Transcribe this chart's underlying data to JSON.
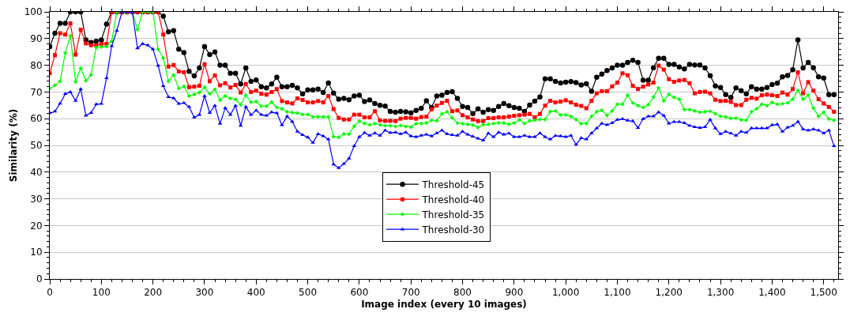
{
  "chart_data": {
    "type": "line",
    "xlabel": "Image index (every 10 images)",
    "ylabel": "Similarity (%)",
    "x": [
      0,
      10,
      20,
      30,
      40,
      50,
      60,
      70,
      80,
      90,
      100,
      110,
      120,
      130,
      140,
      150,
      160,
      170,
      180,
      190,
      200,
      210,
      220,
      230,
      240,
      250,
      260,
      270,
      280,
      290,
      300,
      310,
      320,
      330,
      340,
      350,
      360,
      370,
      380,
      390,
      400,
      410,
      420,
      430,
      440,
      450,
      460,
      470,
      480,
      490,
      500,
      510,
      520,
      530,
      540,
      550,
      560,
      570,
      580,
      590,
      600,
      610,
      620,
      630,
      640,
      650,
      660,
      670,
      680,
      690,
      700,
      710,
      720,
      730,
      740,
      750,
      760,
      770,
      780,
      790,
      800,
      810,
      820,
      830,
      840,
      850,
      860,
      870,
      880,
      890,
      900,
      910,
      920,
      930,
      940,
      950,
      960,
      970,
      980,
      990,
      1000,
      1010,
      1020,
      1030,
      1040,
      1050,
      1060,
      1070,
      1080,
      1090,
      1100,
      1110,
      1120,
      1130,
      1140,
      1150,
      1160,
      1170,
      1180,
      1190,
      1200,
      1210,
      1220,
      1230,
      1240,
      1250,
      1260,
      1270,
      1280,
      1290,
      1300,
      1310,
      1320,
      1330,
      1340,
      1350,
      1360,
      1370,
      1380,
      1390,
      1400,
      1410,
      1420,
      1430,
      1440,
      1450,
      1460,
      1470,
      1480,
      1490,
      1500,
      1510,
      1520
    ],
    "series": [
      {
        "name": "Threshold-45",
        "color": "#000000",
        "marker": "circle",
        "values": [
          87,
          92,
          95.7,
          95.7,
          100,
          100,
          100,
          89.5,
          88.5,
          89,
          89.5,
          95.4,
          100,
          100,
          100,
          100,
          100,
          100,
          100,
          100,
          100,
          100,
          98.4,
          92.5,
          93,
          86,
          84.8,
          77.7,
          76,
          79,
          87,
          84,
          85,
          80,
          80,
          77,
          77,
          73,
          79,
          74,
          74.5,
          72,
          71.5,
          73,
          75.5,
          72,
          72,
          72.5,
          71.5,
          69.3,
          70.8,
          70.8,
          71.1,
          69.8,
          73.4,
          69.6,
          67.3,
          67.6,
          67.1,
          68.5,
          68.8,
          66.4,
          67,
          65.7,
          65,
          64.7,
          62.7,
          62.4,
          62.7,
          62.6,
          62.2,
          63.1,
          63.9,
          66.7,
          64.2,
          68.5,
          68.8,
          69.8,
          70.1,
          67.6,
          64.6,
          64.2,
          61.9,
          63.7,
          62.4,
          63.4,
          63.1,
          64.6,
          65.7,
          64.9,
          64.2,
          63.9,
          62.7,
          65.1,
          66.6,
          68.1,
          74.9,
          74.9,
          74,
          73.4,
          73.7,
          73.9,
          73.5,
          72.6,
          73.1,
          70.3,
          75.5,
          76.7,
          78,
          79,
          80,
          80,
          81.1,
          81.9,
          81.1,
          74.4,
          74.4,
          79.1,
          82.6,
          82.6,
          80.3,
          80.3,
          79.4,
          78.6,
          80.3,
          80.1,
          80.1,
          79,
          76.1,
          72.3,
          71.7,
          69,
          68,
          71.5,
          70.5,
          69.3,
          72,
          71.1,
          71.1,
          71.7,
          72.8,
          73.3,
          75.7,
          76.2,
          78.3,
          89.5,
          79,
          81.1,
          79.1,
          75.7,
          75.2,
          69,
          69
        ]
      },
      {
        "name": "Threshold-40",
        "color": "#ff0000",
        "marker": "square",
        "values": [
          77,
          83.8,
          92,
          91.5,
          95.7,
          84,
          93.3,
          88.2,
          87.5,
          87.5,
          88,
          88,
          100,
          100,
          100,
          100,
          100,
          100,
          100,
          100,
          100,
          100,
          91.5,
          79.5,
          80.1,
          77.7,
          77.4,
          71.8,
          72,
          72.3,
          80.4,
          74,
          76.2,
          72.5,
          73.3,
          71.7,
          72.6,
          69.8,
          73,
          70,
          70.5,
          69.3,
          69,
          70,
          71.1,
          66.6,
          66.1,
          65.7,
          67.6,
          67,
          66.1,
          66.1,
          66.6,
          66.1,
          68.5,
          63.6,
          60.3,
          59.7,
          59.7,
          61.5,
          61.5,
          60.5,
          60.5,
          62.8,
          59.4,
          59.2,
          59.2,
          59.1,
          60,
          60.3,
          60.3,
          60,
          60.6,
          60.8,
          63.5,
          64.9,
          65.9,
          66.7,
          62.8,
          63.1,
          61.3,
          60.5,
          59.7,
          59.1,
          59.1,
          60.2,
          60.2,
          60.5,
          60.5,
          60.8,
          61.1,
          61.3,
          61.5,
          61.8,
          60.5,
          61.8,
          64.9,
          66.7,
          66.1,
          66.4,
          66.9,
          66.1,
          65.2,
          64.8,
          63.9,
          66.7,
          69.5,
          70.3,
          70.3,
          72.1,
          73.5,
          77,
          76.3,
          72.3,
          71.1,
          72,
          72.8,
          73.5,
          79.9,
          78.4,
          74.8,
          73.8,
          74.3,
          74.5,
          73.3,
          69.5,
          70,
          70.1,
          69.5,
          67.1,
          66.6,
          66.7,
          66.3,
          65.1,
          65.1,
          67.1,
          67.8,
          67.5,
          68.8,
          69,
          68.8,
          68.5,
          69.8,
          69,
          71.1,
          77.4,
          69.5,
          73.7,
          70.5,
          67.3,
          65.7,
          64.4,
          62.6
        ]
      },
      {
        "name": "Threshold-35",
        "color": "#00ff00",
        "marker": "diamond",
        "values": [
          71.3,
          72.5,
          74,
          84.6,
          91,
          73.8,
          78.9,
          74.2,
          76.4,
          86.6,
          86.9,
          87,
          89,
          100,
          100,
          100,
          100,
          93.4,
          100,
          100,
          100,
          86,
          82.7,
          74,
          76.4,
          71.3,
          72.1,
          68.5,
          69.1,
          69.8,
          71.8,
          69.3,
          71,
          67,
          68.5,
          67.6,
          67.3,
          65.2,
          68.8,
          66.2,
          66.4,
          64.7,
          64.7,
          66.2,
          64.2,
          63.7,
          62.6,
          62.3,
          62.1,
          61.6,
          61.6,
          60.7,
          60.7,
          60.7,
          60.7,
          53.3,
          53,
          54.3,
          54.2,
          57.2,
          59.1,
          58.2,
          57.7,
          58.2,
          57.7,
          57.4,
          57.4,
          57.1,
          57.4,
          57.1,
          56.9,
          58.1,
          58.2,
          58.4,
          59.4,
          59.2,
          61.8,
          62.6,
          60.3,
          58.4,
          58.1,
          57.9,
          57.6,
          56.7,
          57.7,
          57.9,
          58.2,
          58.4,
          58.4,
          57.9,
          58.4,
          59.6,
          58.2,
          59.2,
          59.4,
          59.7,
          59.7,
          62.7,
          62.9,
          61.4,
          61.4,
          60.9,
          59.7,
          58.1,
          58.2,
          60.9,
          62.6,
          63.2,
          61.2,
          62.9,
          65.4,
          65.4,
          68.8,
          65.9,
          64.9,
          64.2,
          65.2,
          68.1,
          71.5,
          66.7,
          69.1,
          68,
          67.3,
          63.4,
          63.4,
          62.9,
          62.4,
          62.6,
          62.8,
          61.9,
          60.9,
          60.7,
          60.1,
          60.2,
          59.6,
          59.4,
          62.6,
          63.7,
          65.4,
          64.9,
          66.1,
          65.4,
          65.6,
          65.9,
          67.3,
          70.6,
          67.3,
          68.8,
          63.9,
          60.9,
          62.4,
          59.9,
          59.4
        ]
      },
      {
        "name": "Threshold-30",
        "color": "#0000ff",
        "marker": "triangle",
        "values": [
          62.1,
          62.7,
          65.7,
          69.3,
          70,
          66.7,
          71.1,
          61.2,
          62.2,
          65.4,
          65.6,
          75.2,
          87.2,
          93,
          100,
          100,
          100,
          86.4,
          88,
          87.5,
          86,
          79.9,
          72.3,
          68.1,
          67.7,
          65.6,
          65.9,
          64.4,
          60.5,
          61.5,
          68.5,
          62.2,
          64.9,
          58.1,
          64,
          61.5,
          64.9,
          57.4,
          64.4,
          61.5,
          63.1,
          61.5,
          61.2,
          62.4,
          62.1,
          57.6,
          60.9,
          58.9,
          55.2,
          53.9,
          53,
          51,
          54.3,
          53.5,
          52.3,
          42.9,
          41.6,
          43.1,
          45.1,
          49.8,
          53.2,
          54.7,
          53.7,
          54.6,
          53.7,
          55.6,
          54.7,
          54.9,
          54.3,
          54.9,
          53.5,
          53.2,
          53.7,
          54.1,
          53.5,
          54.6,
          55.6,
          54.3,
          53.9,
          53.7,
          55.2,
          54.1,
          53.3,
          52.6,
          51.9,
          54.5,
          53.2,
          54.9,
          54.1,
          54.5,
          53.2,
          53.2,
          53.7,
          53.2,
          53.2,
          54.6,
          53.2,
          52.3,
          53.6,
          53.5,
          53.2,
          53.7,
          50.3,
          52.7,
          52.3,
          54.6,
          56.4,
          58.2,
          57.7,
          58.4,
          59.6,
          59.9,
          59.3,
          59.1,
          56.6,
          59.9,
          60.9,
          60.9,
          62.4,
          61.2,
          58.2,
          58.8,
          58.8,
          58.4,
          57.4,
          56.9,
          56.6,
          56.9,
          59.6,
          56.4,
          54.3,
          55.2,
          54.5,
          53.7,
          55.2,
          54.8,
          56.4,
          56.4,
          56.4,
          56.4,
          57.6,
          57.9,
          55.2,
          56.7,
          57.4,
          58.9,
          56.1,
          55.6,
          56.1,
          55.6,
          54.6,
          55.6,
          49.8
        ]
      }
    ],
    "xlim": [
      0,
      1528
    ],
    "ylim": [
      0,
      100
    ],
    "xticks": [
      0,
      100,
      200,
      300,
      400,
      500,
      600,
      700,
      800,
      900,
      {
        "value": 1000,
        "label": "1,000"
      },
      {
        "value": 1100,
        "label": "1,100"
      },
      {
        "value": 1200,
        "label": "1,200"
      },
      {
        "value": 1300,
        "label": "1,300"
      },
      {
        "value": 1400,
        "label": "1,400"
      },
      {
        "value": 1500,
        "label": "1,500"
      }
    ],
    "yticks": [
      0,
      10,
      20,
      30,
      40,
      50,
      60,
      70,
      80,
      90,
      100
    ],
    "grid": "y",
    "legend": "bottom",
    "line_style": "solid"
  }
}
